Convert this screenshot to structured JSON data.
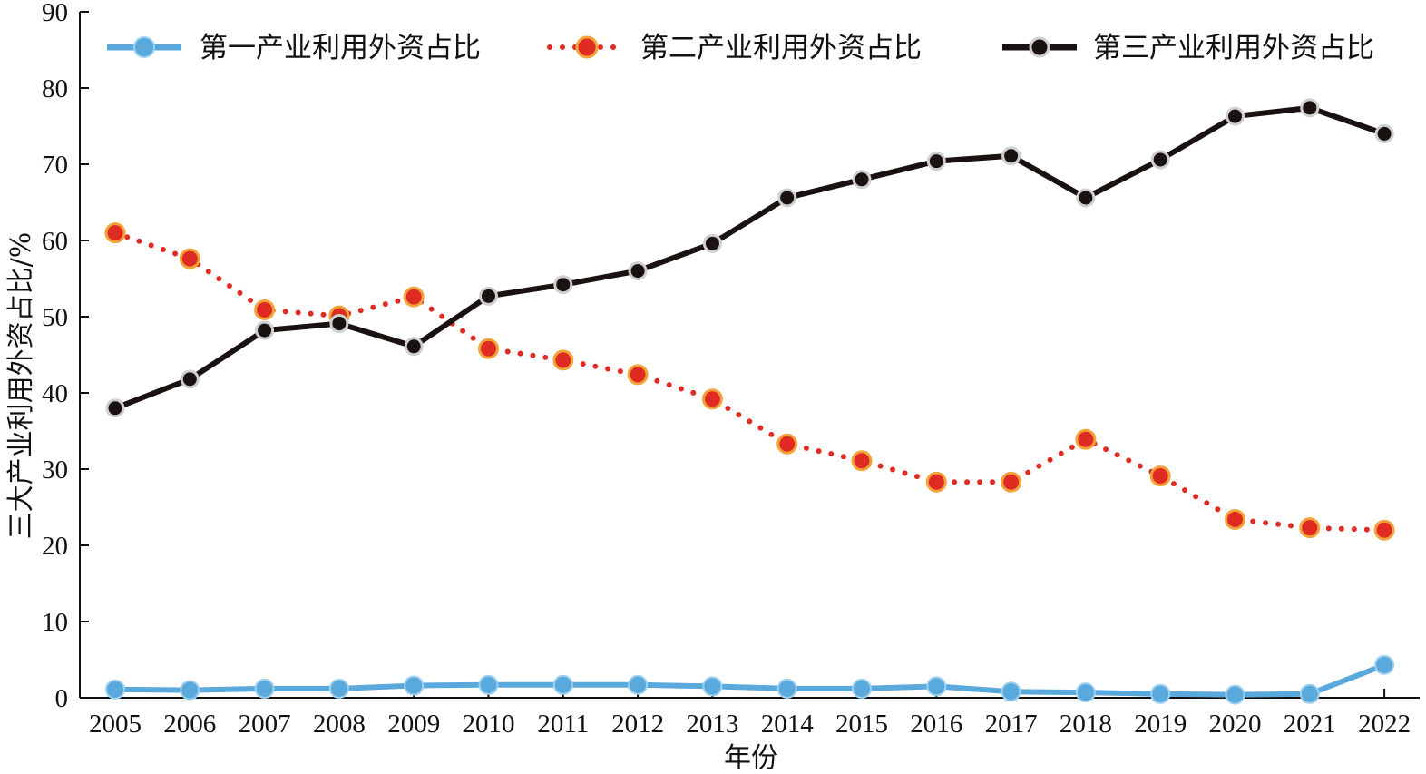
{
  "chart_data": {
    "type": "line",
    "xlabel": "年份",
    "ylabel": "三大产业利用外资占比/%",
    "ylim": [
      0,
      90
    ],
    "yticks": [
      0,
      10,
      20,
      30,
      40,
      50,
      60,
      70,
      80,
      90
    ],
    "categories": [
      "2005",
      "2006",
      "2007",
      "2008",
      "2009",
      "2010",
      "2011",
      "2012",
      "2013",
      "2014",
      "2015",
      "2016",
      "2017",
      "2018",
      "2019",
      "2020",
      "2021",
      "2022"
    ],
    "legend_position": "top",
    "series": [
      {
        "name": "第一产业利用外资占比",
        "color": "#5aa9dc",
        "line_style": "solid",
        "values": [
          1.1,
          1.0,
          1.2,
          1.2,
          1.6,
          1.7,
          1.7,
          1.7,
          1.5,
          1.2,
          1.2,
          1.5,
          0.8,
          0.7,
          0.5,
          0.4,
          0.5,
          4.3
        ]
      },
      {
        "name": "第二产业利用外资占比",
        "color": "#e02b22",
        "line_style": "dotted",
        "values": [
          61.0,
          57.6,
          50.9,
          50.1,
          52.6,
          45.8,
          44.3,
          42.4,
          39.2,
          33.3,
          31.1,
          28.3,
          28.3,
          33.9,
          29.1,
          23.4,
          22.3,
          22.0
        ]
      },
      {
        "name": "第三产业利用外资占比",
        "color": "#1a1111",
        "line_style": "solid",
        "values": [
          38.0,
          41.8,
          48.2,
          49.1,
          46.1,
          52.7,
          54.2,
          56.0,
          59.6,
          65.6,
          68.0,
          70.4,
          71.1,
          65.6,
          70.6,
          76.3,
          77.4,
          74.0
        ]
      }
    ]
  }
}
